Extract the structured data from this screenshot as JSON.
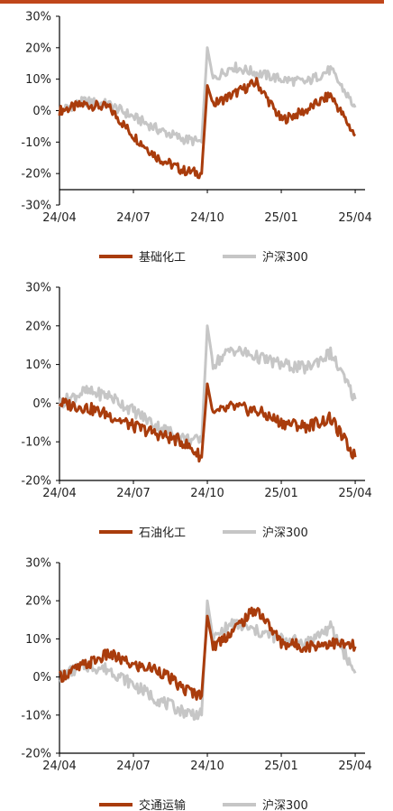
{
  "colors": {
    "accent_bar": "#c0461a",
    "sector": "#a93c0c",
    "index": "#c6c6c6",
    "axis": "#000000"
  },
  "chart_data": [
    {
      "type": "line",
      "x_ticks": [
        "24/04",
        "24/07",
        "24/10",
        "25/01",
        "25/04"
      ],
      "y_ticks": [
        "30%",
        "20%",
        "10%",
        "0%",
        "-10%",
        "-20%",
        "-30%"
      ],
      "ylim": [
        -30,
        30
      ],
      "x": [
        "24/04",
        "24/05",
        "24/06",
        "24/07",
        "24/08",
        "24/09",
        "24/09/24",
        "24/10",
        "24/10/08",
        "24/11",
        "24/12",
        "25/01",
        "25/02",
        "25/03",
        "25/04"
      ],
      "series": [
        {
          "name": "基础化工",
          "values": [
            0,
            2,
            1,
            -8,
            -15,
            -19,
            -20,
            8,
            2,
            5,
            9,
            -3,
            0,
            5,
            -8
          ]
        },
        {
          "name": "沪深300",
          "values": [
            0,
            3,
            2,
            -2,
            -6,
            -9,
            -10,
            20,
            10,
            14,
            12,
            10,
            9,
            13,
            1
          ]
        }
      ]
    },
    {
      "type": "line",
      "x_ticks": [
        "24/04",
        "24/07",
        "24/10",
        "25/01",
        "25/04"
      ],
      "y_ticks": [
        "30%",
        "20%",
        "10%",
        "0%",
        "-10%",
        "-20%"
      ],
      "ylim": [
        -20,
        30
      ],
      "x": [
        "24/04",
        "24/05",
        "24/06",
        "24/07",
        "24/08",
        "24/09",
        "24/09/24",
        "24/10",
        "24/10/08",
        "24/11",
        "24/12",
        "25/01",
        "25/02",
        "25/03",
        "25/04"
      ],
      "series": [
        {
          "name": "石油化工",
          "values": [
            0,
            -1,
            -3,
            -6,
            -8,
            -10,
            -14,
            5,
            -3,
            -1,
            -2,
            -5,
            -6,
            -4,
            -14
          ]
        },
        {
          "name": "沪深300",
          "values": [
            0,
            3,
            2,
            -2,
            -6,
            -9,
            -10,
            20,
            10,
            14,
            12,
            10,
            9,
            13,
            1
          ]
        }
      ]
    },
    {
      "type": "line",
      "x_ticks": [
        "24/04",
        "24/07",
        "24/10",
        "25/01",
        "25/04"
      ],
      "y_ticks": [
        "30%",
        "20%",
        "10%",
        "0%",
        "-10%",
        "-20%"
      ],
      "ylim": [
        -20,
        30
      ],
      "x": [
        "24/04",
        "24/05",
        "24/06",
        "24/07",
        "24/08",
        "24/09",
        "24/09/24",
        "24/10",
        "24/10/08",
        "24/11",
        "24/12",
        "25/01",
        "25/02",
        "25/03",
        "25/04"
      ],
      "series": [
        {
          "name": "交通运输",
          "values": [
            0,
            3,
            6,
            3,
            2,
            -3,
            -5,
            16,
            8,
            12,
            18,
            9,
            8,
            9,
            8
          ]
        },
        {
          "name": "沪深300",
          "values": [
            0,
            3,
            2,
            -2,
            -6,
            -9,
            -10,
            20,
            10,
            14,
            12,
            10,
            9,
            13,
            1
          ]
        }
      ]
    }
  ]
}
